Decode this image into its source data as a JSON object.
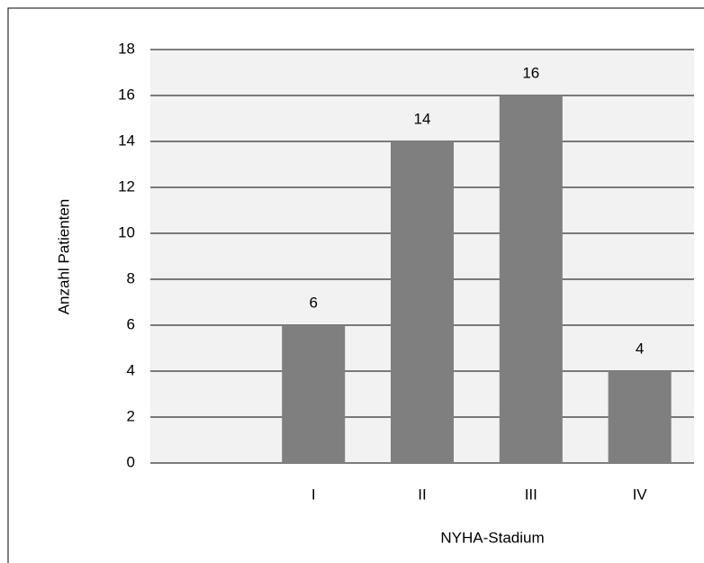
{
  "chart_data": {
    "type": "bar",
    "x_label": "NYHA-Stadium",
    "y_label": "Anzahl Patienten",
    "categories": [
      null,
      "I",
      "II",
      "III",
      "IV"
    ],
    "values": [
      null,
      6,
      14,
      16,
      4
    ],
    "color": "#7f7f7f",
    "ylim": [
      0,
      18
    ],
    "yticks": [
      0,
      2,
      4,
      6,
      8,
      10,
      12,
      14,
      16,
      18
    ],
    "grid": true
  }
}
